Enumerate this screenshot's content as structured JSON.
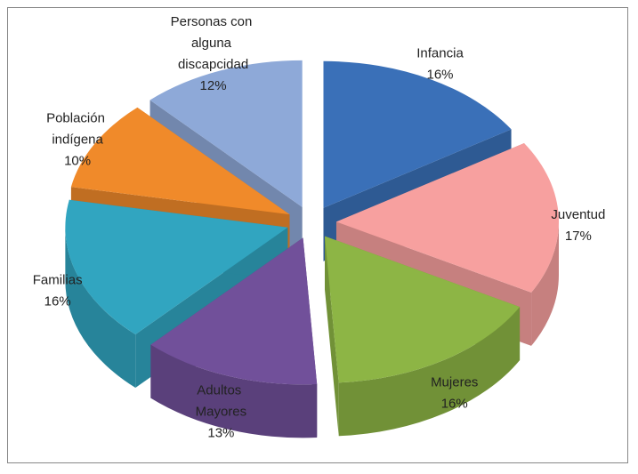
{
  "chart_data": {
    "type": "pie3d",
    "categories": [
      "Infancia",
      "Juventud",
      "Mujeres",
      "Adultos Mayores",
      "Familias",
      "Población indígena",
      "Personas con alguna discapcidad"
    ],
    "values": [
      16,
      17,
      16,
      13,
      16,
      10,
      12
    ],
    "value_labels": [
      "16%",
      "17%",
      "16%",
      "13%",
      "16%",
      "10%",
      "12%"
    ],
    "colors": [
      "#3a70b8",
      "#f7a09f",
      "#8db545",
      "#71509a",
      "#31a5c0",
      "#f08a2a",
      "#8ea9d8"
    ]
  }
}
